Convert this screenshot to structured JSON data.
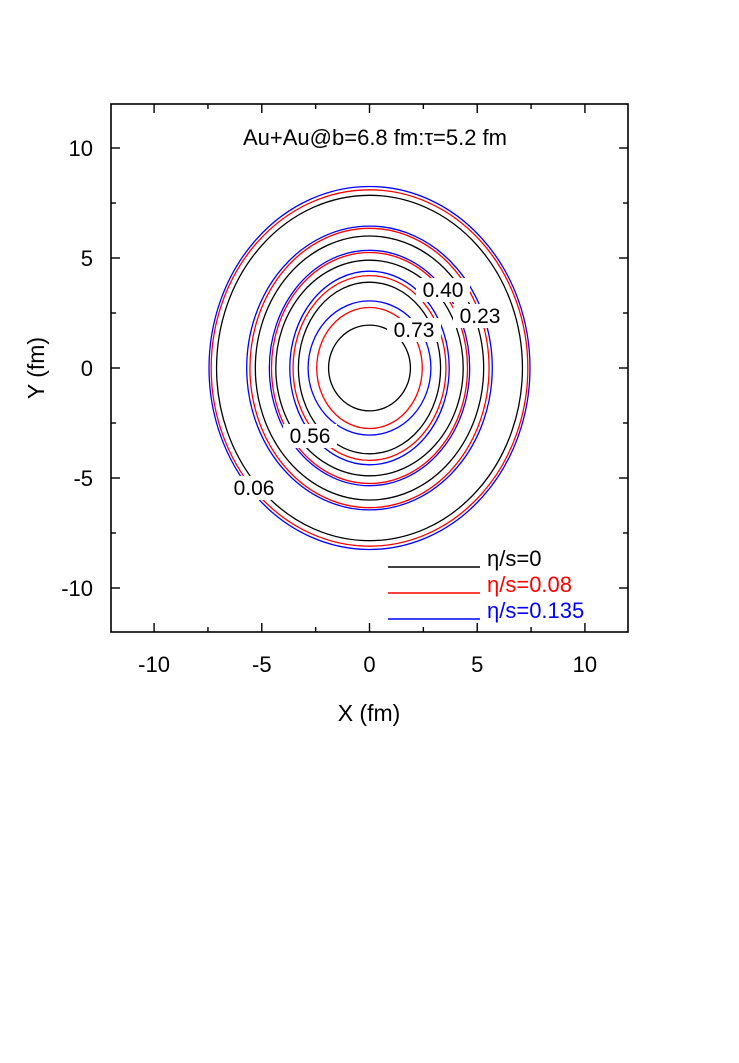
{
  "chart_data": {
    "type": "contour",
    "title": "Au+Au@b=6.8 fm:τ=5.2 fm",
    "xlabel": "X (fm)",
    "ylabel": "Y (fm)",
    "xlim": [
      -12,
      12
    ],
    "ylim": [
      -12,
      12
    ],
    "x_ticks": [
      -10,
      -5,
      0,
      5,
      10
    ],
    "y_ticks": [
      -10,
      -5,
      0,
      5,
      10
    ],
    "x_tick_labels": [
      "-10",
      "-5",
      "0",
      "5",
      "10"
    ],
    "y_tick_labels": [
      "-10",
      "-5",
      "0",
      "5",
      "10"
    ],
    "grid": false,
    "legend_position": "bottom-right",
    "series": [
      {
        "name": "η/s=0",
        "color": "#000000",
        "contours": [
          {
            "level": 0.06,
            "rx": 7.1,
            "ry": 7.85
          },
          {
            "level": 0.23,
            "rx": 5.3,
            "ry": 6.0
          },
          {
            "level": 0.4,
            "rx": 4.35,
            "ry": 4.9
          },
          {
            "level": 0.56,
            "rx": 3.3,
            "ry": 3.9
          },
          {
            "level": 0.73,
            "rx": 1.9,
            "ry": 1.95
          }
        ]
      },
      {
        "name": "η/s=0.08",
        "color": "#ff0000",
        "contours": [
          {
            "level": 0.06,
            "rx": 7.35,
            "ry": 8.1
          },
          {
            "level": 0.23,
            "rx": 5.55,
            "ry": 6.35
          },
          {
            "level": 0.4,
            "rx": 4.55,
            "ry": 5.25
          },
          {
            "level": 0.56,
            "rx": 3.55,
            "ry": 4.2
          },
          {
            "level": 0.73,
            "rx": 2.45,
            "ry": 2.75
          }
        ]
      },
      {
        "name": "η/s=0.135",
        "color": "#0000ff",
        "contours": [
          {
            "level": 0.06,
            "rx": 7.45,
            "ry": 8.25
          },
          {
            "level": 0.23,
            "rx": 5.7,
            "ry": 6.45
          },
          {
            "level": 0.4,
            "rx": 4.65,
            "ry": 5.35
          },
          {
            "level": 0.56,
            "rx": 3.7,
            "ry": 4.4
          },
          {
            "level": 0.73,
            "rx": 2.85,
            "ry": 3.05
          }
        ]
      }
    ],
    "contour_labels": [
      "0.40",
      "0.23",
      "0.73",
      "0.56",
      "0.06"
    ]
  }
}
